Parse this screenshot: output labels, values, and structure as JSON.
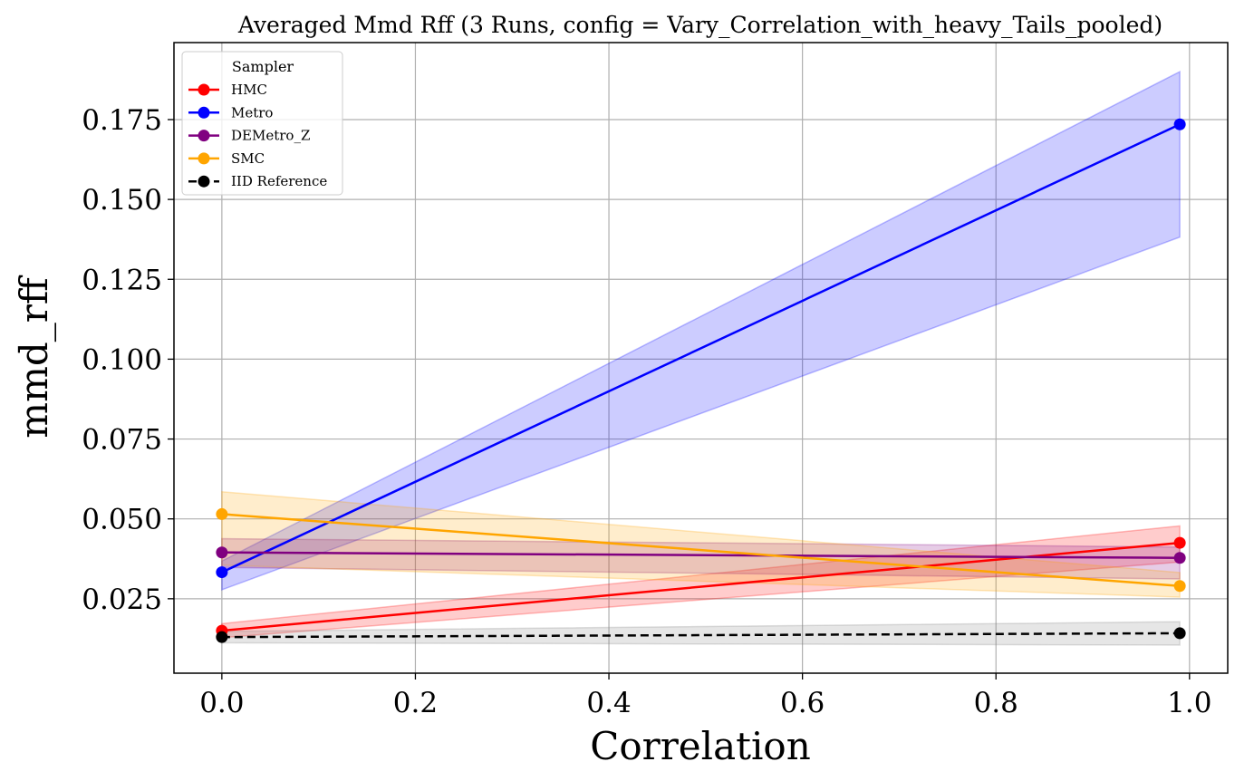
{
  "chart_data": {
    "type": "line",
    "title": "Averaged Mmd Rff (3 Runs, config = Vary_Correlation_with_heavy_Tails_pooled)",
    "xlabel": "Correlation",
    "ylabel": "mmd_rff",
    "xlim": [
      -0.0495,
      1.0395
    ],
    "ylim": [
      0.0017,
      0.1991
    ],
    "xticks": [
      0.0,
      0.2,
      0.4,
      0.6,
      0.8,
      1.0
    ],
    "xtick_labels": [
      "0.0",
      "0.2",
      "0.4",
      "0.6",
      "0.8",
      "1.0"
    ],
    "yticks": [
      0.025,
      0.05,
      0.075,
      0.1,
      0.125,
      0.15,
      0.175
    ],
    "ytick_labels": [
      "0.025",
      "0.050",
      "0.075",
      "0.100",
      "0.125",
      "0.150",
      "0.175"
    ],
    "grid": true,
    "legend": {
      "title": "Sampler",
      "placement": "top-left"
    },
    "x": [
      0.0,
      0.99
    ],
    "series": [
      {
        "name": "HMC",
        "color": "#ff0000",
        "dashed": false,
        "values": [
          0.015,
          0.0425
        ],
        "lower": [
          0.0128,
          0.0365
        ],
        "upper": [
          0.0172,
          0.0478
        ]
      },
      {
        "name": "Metro",
        "color": "#0000ff",
        "dashed": false,
        "values": [
          0.0333,
          0.1735
        ],
        "lower": [
          0.0278,
          0.1382
        ],
        "upper": [
          0.0368,
          0.19
        ]
      },
      {
        "name": "DEMetro_Z",
        "color": "#800080",
        "dashed": false,
        "values": [
          0.0395,
          0.0378
        ],
        "lower": [
          0.0348,
          0.0312
        ],
        "upper": [
          0.0438,
          0.0412
        ]
      },
      {
        "name": "SMC",
        "color": "#ffa500",
        "dashed": false,
        "values": [
          0.0515,
          0.029
        ],
        "lower": [
          0.0355,
          0.0255
        ],
        "upper": [
          0.0585,
          0.0332
        ]
      },
      {
        "name": "IID Reference",
        "color": "#000000",
        "dashed": true,
        "values": [
          0.013,
          0.0142
        ],
        "lower": [
          0.0112,
          0.0105
        ],
        "upper": [
          0.0148,
          0.0178
        ]
      }
    ]
  }
}
